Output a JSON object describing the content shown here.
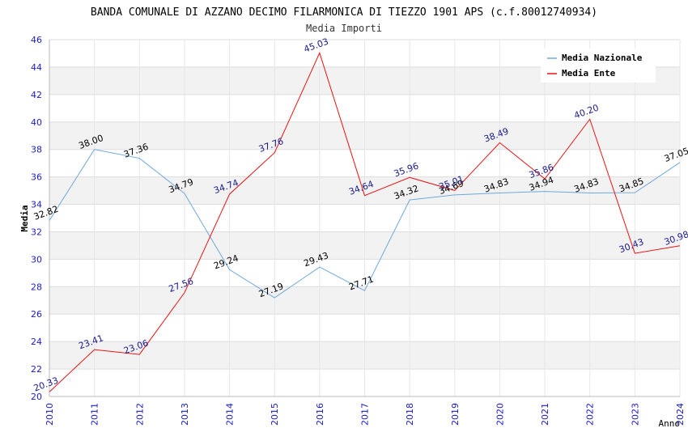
{
  "chart_data": {
    "type": "line",
    "title": "BANDA COMUNALE DI AZZANO DECIMO FILARMONICA DI TIEZZO 1901 APS (c.f.80012740934)",
    "subtitle": "Media Importi",
    "xlabel": "Anno",
    "ylabel": "Media",
    "x": [
      2010,
      2011,
      2012,
      2013,
      2014,
      2015,
      2016,
      2017,
      2018,
      2019,
      2020,
      2021,
      2022,
      2023,
      2024
    ],
    "ylim": [
      20,
      46
    ],
    "yticks": [
      20,
      22,
      24,
      26,
      28,
      30,
      32,
      34,
      36,
      38,
      40,
      42,
      44,
      46
    ],
    "grid": true,
    "legend_position": "top-right",
    "series": [
      {
        "name": "Media Nazionale",
        "color": "#6fa8dc",
        "label_color": "#000000",
        "values": [
          32.82,
          38.0,
          37.36,
          34.79,
          29.24,
          27.19,
          29.43,
          27.71,
          34.32,
          34.69,
          34.83,
          34.94,
          34.83,
          34.85,
          37.05
        ],
        "labels": [
          "32.82",
          "38.00",
          "37.36",
          "34.79",
          "29.24",
          "27.19",
          "29.43",
          "27.71",
          "34.32",
          "34.69",
          "34.83",
          "34.94",
          "34.83",
          "34.85",
          "37.05"
        ]
      },
      {
        "name": "Media Ente",
        "color": "#ee1111",
        "label_color": "#1a1a8c",
        "values": [
          20.33,
          23.41,
          23.06,
          27.56,
          34.74,
          37.76,
          45.03,
          34.64,
          35.96,
          35.01,
          38.49,
          35.86,
          40.2,
          30.43,
          30.98
        ],
        "labels": [
          "20.33",
          "23.41",
          "23.06",
          "27.56",
          "34.74",
          "37.76",
          "45.03",
          "34.64",
          "35.96",
          "35.01",
          "38.49",
          "35.86",
          "40.20",
          "30.43",
          "30.98"
        ]
      }
    ]
  }
}
